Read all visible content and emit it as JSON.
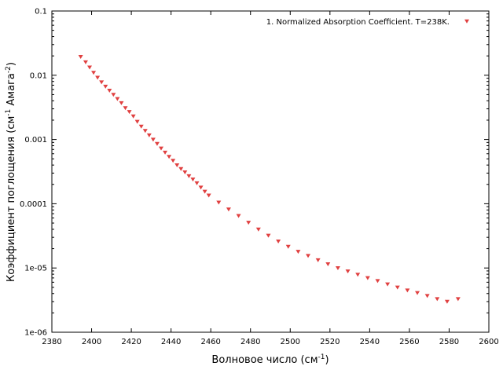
{
  "chart_data": {
    "type": "scatter",
    "xlabel": "Волновое число (см",
    "xlabel_sup": "-1",
    "xlabel_end": ")",
    "ylabel": "Коэффициент поглощения (см",
    "ylabel_sup1": "-1",
    "ylabel_mid": " Амага",
    "ylabel_sup2": "-2",
    "ylabel_end": ")",
    "xlim": [
      2380,
      2600
    ],
    "ylim": [
      1e-06,
      0.1
    ],
    "yscale": "log",
    "grid": false,
    "legend_position": "top-right",
    "x_ticks": [
      {
        "value": 2380,
        "label": "2380"
      },
      {
        "value": 2400,
        "label": "2400"
      },
      {
        "value": 2420,
        "label": "2420"
      },
      {
        "value": 2440,
        "label": "2440"
      },
      {
        "value": 2460,
        "label": "2460"
      },
      {
        "value": 2480,
        "label": "2480"
      },
      {
        "value": 2500,
        "label": "2500"
      },
      {
        "value": 2520,
        "label": "2520"
      },
      {
        "value": 2540,
        "label": "2540"
      },
      {
        "value": 2560,
        "label": "2560"
      },
      {
        "value": 2580,
        "label": "2580"
      },
      {
        "value": 2600,
        "label": "2600"
      }
    ],
    "y_ticks": [
      {
        "value": 0.1,
        "label": "0.1"
      },
      {
        "value": 0.01,
        "label": "0.01"
      },
      {
        "value": 0.001,
        "label": "0.001"
      },
      {
        "value": 0.0001,
        "label": "0.0001"
      },
      {
        "value": 1e-05,
        "label": "1e-05"
      },
      {
        "value": 1e-06,
        "label": "1e-06"
      }
    ],
    "series": [
      {
        "name": "1. Normalized Absorption Coefficient. T=238K.",
        "color": "#e04040",
        "marker": "triangle-down",
        "x": [
          2394.5,
          2397,
          2399,
          2401,
          2403,
          2405,
          2407,
          2409,
          2411,
          2413,
          2415,
          2417,
          2419,
          2421,
          2423,
          2425,
          2427,
          2429,
          2431,
          2433,
          2435,
          2437,
          2439,
          2441,
          2443,
          2445,
          2447,
          2449,
          2451,
          2453,
          2455,
          2457,
          2459,
          2464,
          2469,
          2474,
          2479,
          2484,
          2489,
          2494,
          2499,
          2504,
          2509,
          2514,
          2519,
          2524,
          2529,
          2534,
          2539,
          2544,
          2549,
          2554,
          2559,
          2564,
          2569,
          2574,
          2579,
          2584.5
        ],
        "y": [
          0.0194,
          0.016,
          0.0133,
          0.011,
          0.0092,
          0.0078,
          0.0067,
          0.0058,
          0.005,
          0.0043,
          0.0037,
          0.0031,
          0.0027,
          0.0023,
          0.0019,
          0.0016,
          0.00137,
          0.00117,
          0.001,
          0.00086,
          0.00073,
          0.00063,
          0.00054,
          0.00047,
          0.0004,
          0.00035,
          0.00031,
          0.00027,
          0.00024,
          0.00021,
          0.00018,
          0.000155,
          0.000135,
          0.000105,
          8.2e-05,
          6.5e-05,
          5.1e-05,
          4e-05,
          3.2e-05,
          2.6e-05,
          2.15e-05,
          1.8e-05,
          1.55e-05,
          1.33e-05,
          1.15e-05,
          1e-05,
          8.9e-06,
          7.9e-06,
          7e-06,
          6.3e-06,
          5.6e-06,
          5e-06,
          4.5e-06,
          4.1e-06,
          3.7e-06,
          3.3e-06,
          3e-06,
          3.3e-06
        ]
      }
    ]
  }
}
